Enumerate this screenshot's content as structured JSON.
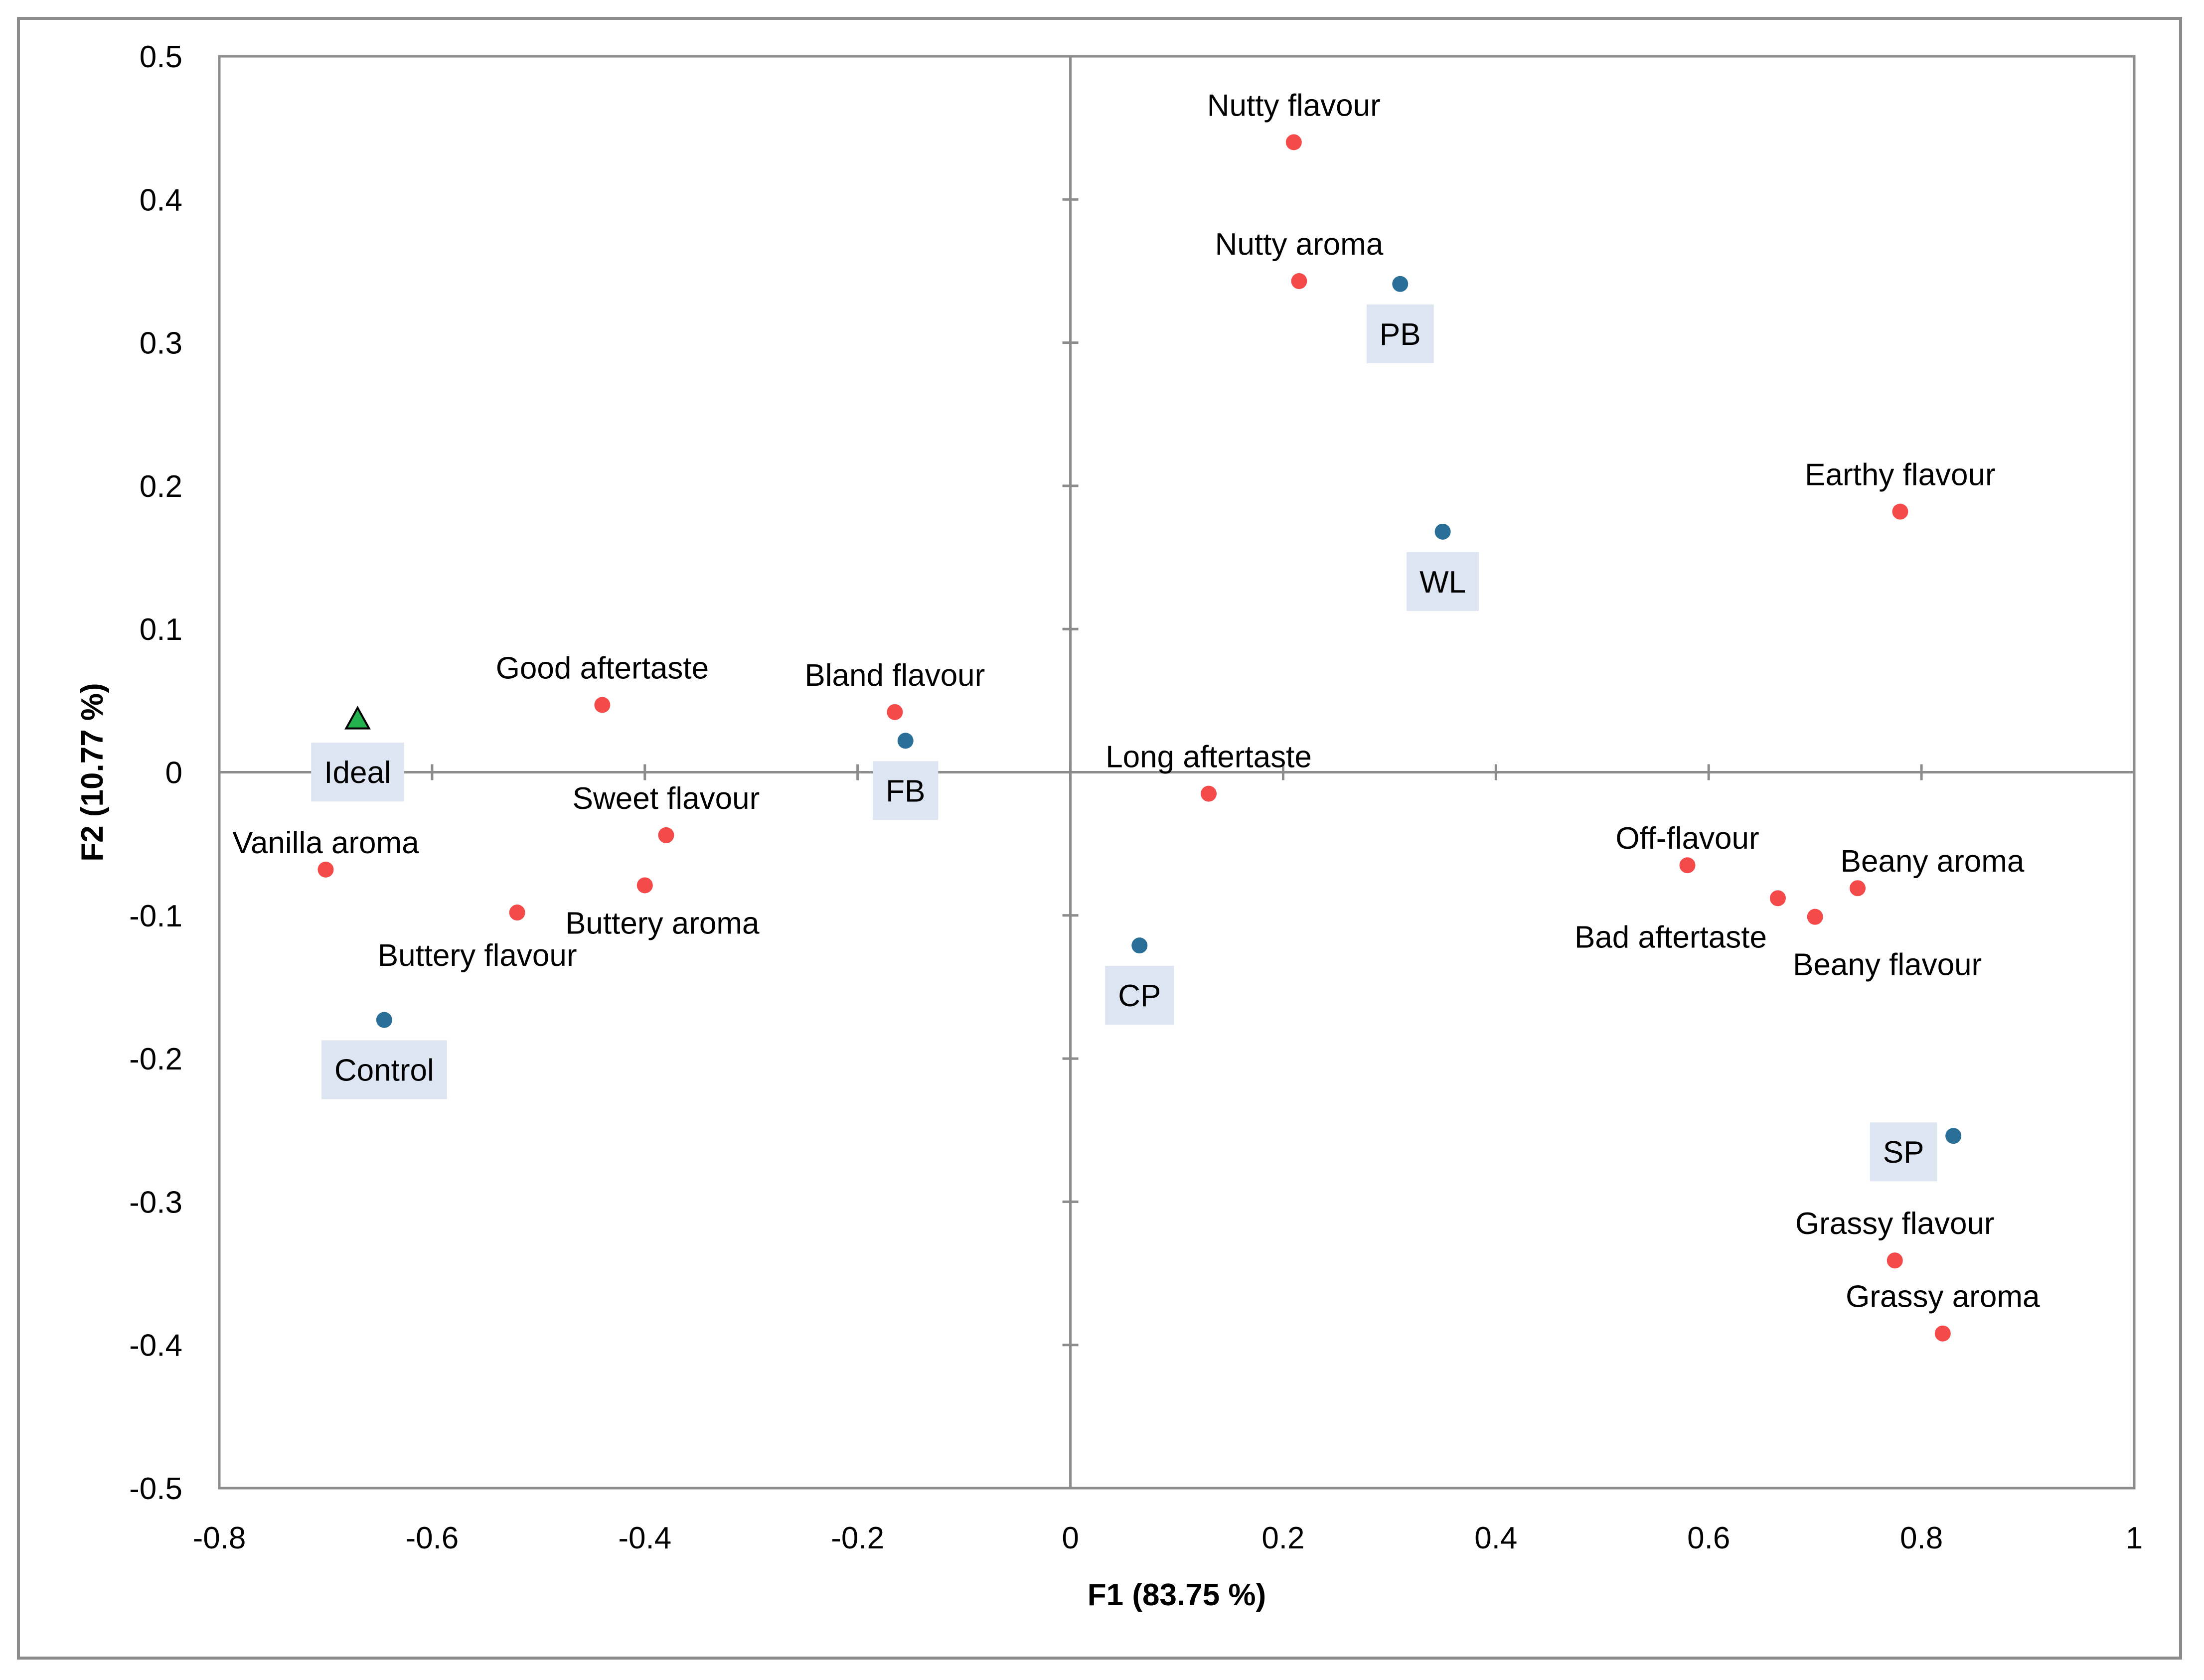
{
  "chart_data": {
    "type": "scatter",
    "xlabel": "F1 (83.75 %)",
    "ylabel": "F2 (10.77 %)",
    "xlim": [
      -0.8,
      1
    ],
    "ylim": [
      -0.5,
      0.5
    ],
    "x_ticks": [
      "-0.8",
      "-0.6",
      "-0.4",
      "-0.2",
      "0",
      "0.2",
      "0.4",
      "0.6",
      "0.8",
      "1"
    ],
    "y_ticks": [
      "0.5",
      "0.4",
      "0.3",
      "0.2",
      "0.1",
      "0",
      "-0.1",
      "-0.2",
      "-0.3",
      "-0.4",
      "-0.5"
    ],
    "grid": false,
    "colors": {
      "attributes": "#f44a4a",
      "products": "#2a6f97",
      "ideal": "#22b14c",
      "label_box": "#dde5f2",
      "axis": "#8c8c8c"
    },
    "series": [
      {
        "points": [
          {
            "label": "Nutty flavour",
            "x": 0.21,
            "y": 0.44
          },
          {
            "label": "Nutty aroma",
            "x": 0.215,
            "y": 0.343
          },
          {
            "label": "Earthy flavour",
            "x": 0.78,
            "y": 0.182
          },
          {
            "label": "Good aftertaste",
            "x": -0.44,
            "y": 0.047
          },
          {
            "label": "Bland flavour",
            "x": -0.165,
            "y": 0.042
          },
          {
            "label": "Long aftertaste",
            "x": 0.13,
            "y": -0.015
          },
          {
            "label": "Sweet flavour",
            "x": -0.38,
            "y": -0.044
          },
          {
            "label": "Vanilla aroma",
            "x": -0.7,
            "y": -0.068
          },
          {
            "label": "Buttery aroma",
            "x": -0.4,
            "y": -0.079
          },
          {
            "label": "Buttery flavour",
            "x": -0.52,
            "y": -0.098
          },
          {
            "label": "Off-flavour",
            "x": 0.58,
            "y": -0.065
          },
          {
            "label": "Beany aroma",
            "x": 0.74,
            "y": -0.081
          },
          {
            "label": "Bad aftertaste",
            "x": 0.665,
            "y": -0.088
          },
          {
            "label": "Beany flavour",
            "x": 0.7,
            "y": -0.101
          },
          {
            "label": "Grassy flavour",
            "x": 0.775,
            "y": -0.341
          },
          {
            "label": "Grassy aroma",
            "x": 0.82,
            "y": -0.392
          }
        ]
      },
      {
        "points": [
          {
            "label": "PB",
            "x": 0.31,
            "y": 0.341
          },
          {
            "label": "WL",
            "x": 0.35,
            "y": 0.168
          },
          {
            "label": "FB",
            "x": -0.155,
            "y": 0.022
          },
          {
            "label": "CP",
            "x": 0.065,
            "y": -0.121
          },
          {
            "label": "Control",
            "x": -0.645,
            "y": -0.173
          },
          {
            "label": "SP",
            "x": 0.83,
            "y": -0.254
          }
        ]
      },
      {
        "points": [
          {
            "label": "Ideal",
            "x": -0.67,
            "y": 0.037
          }
        ]
      }
    ]
  }
}
